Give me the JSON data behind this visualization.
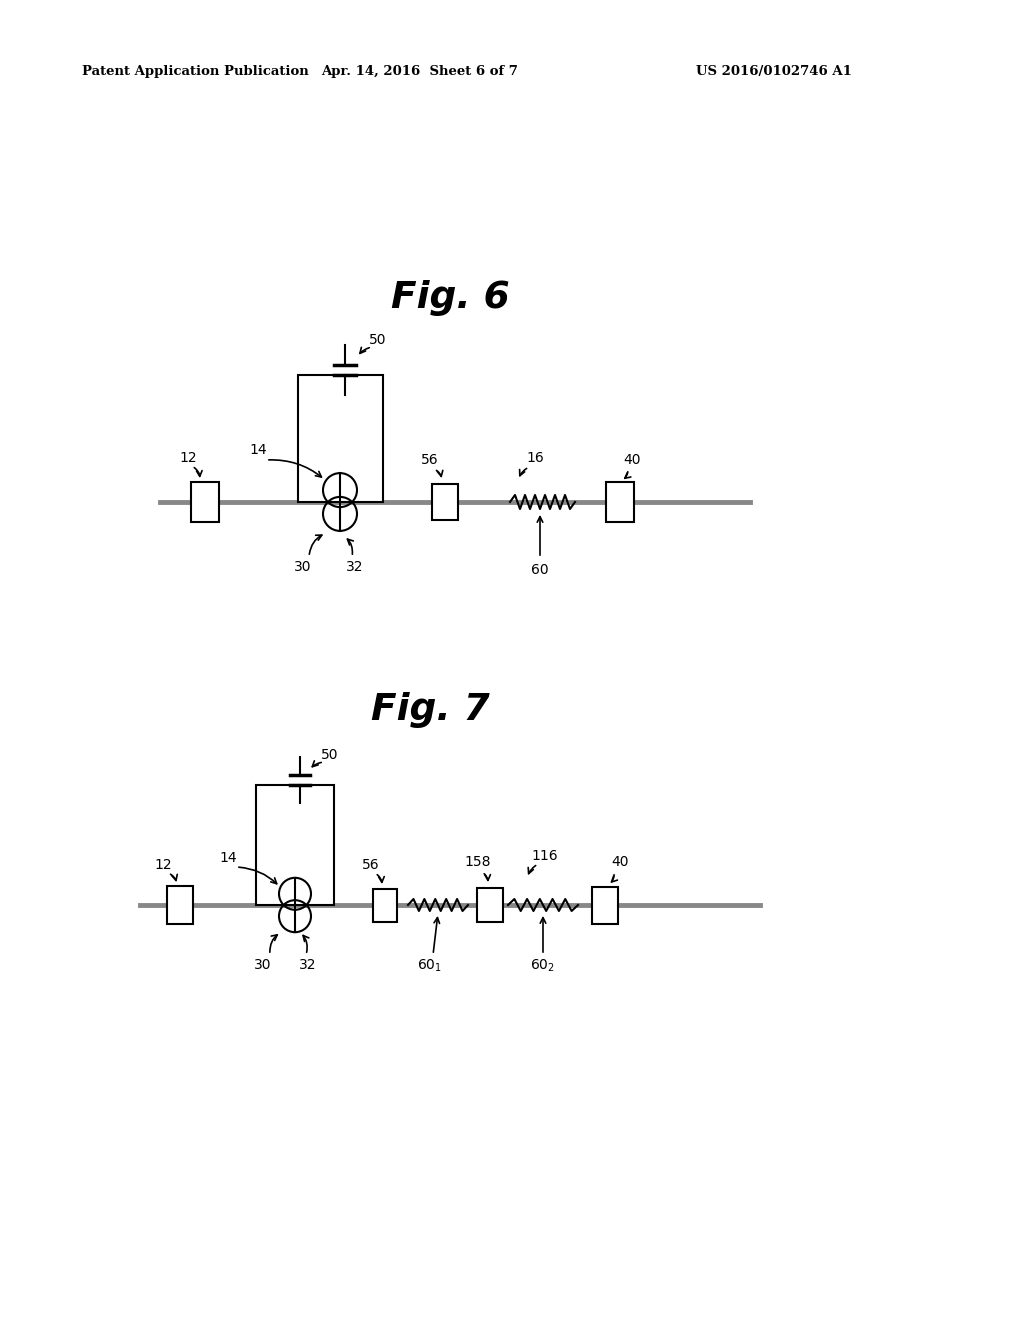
{
  "bg_color": "#ffffff",
  "line_color": "#000000",
  "gray_line_color": "#888888",
  "header_left": "Patent Application Publication",
  "header_center": "Apr. 14, 2016  Sheet 6 of 7",
  "header_right": "US 2016/0102746 A1",
  "fig6_title": "Fig. 6",
  "fig7_title": "Fig. 7"
}
